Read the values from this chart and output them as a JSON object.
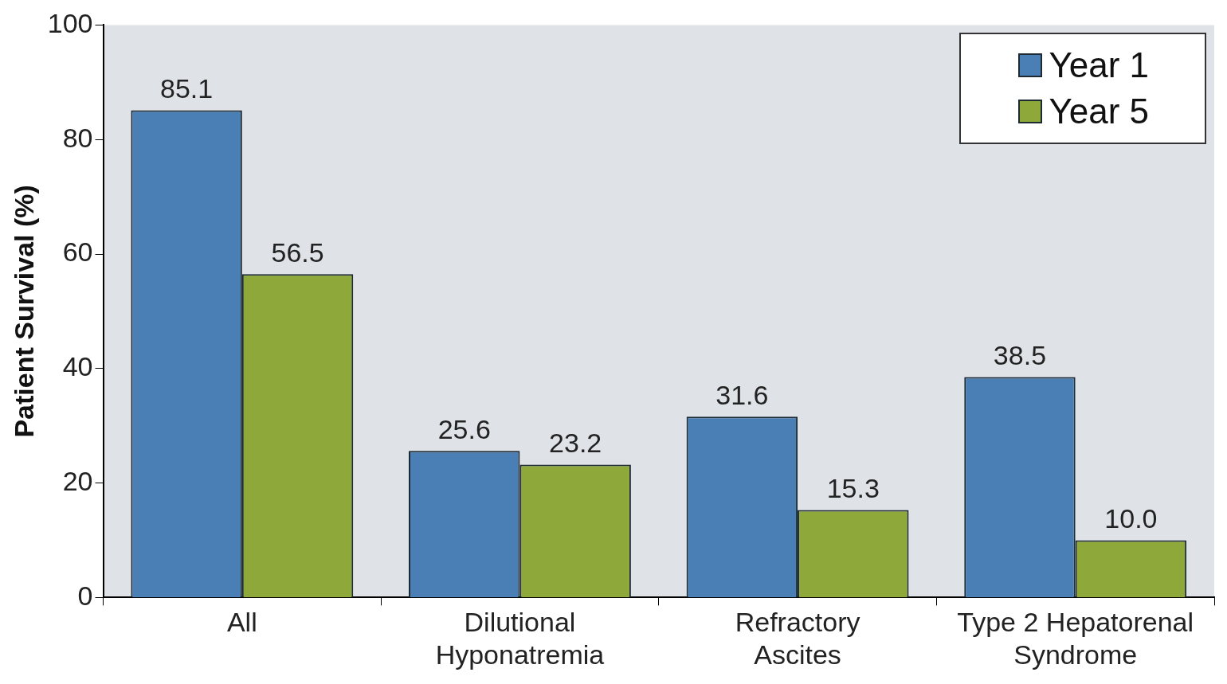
{
  "chart_data": {
    "type": "bar",
    "ylabel": "Patient Survival (%)",
    "categories": [
      "All",
      "Dilutional Hyponatremia",
      "Refractory Ascites",
      "Type 2 Hepatorenal Syndrome"
    ],
    "series": [
      {
        "name": "Year 1",
        "color": "#4a7fb5",
        "values": [
          85.1,
          25.6,
          31.6,
          38.5
        ],
        "value_labels": [
          "85.1",
          "25.6",
          "31.6",
          "38.5"
        ]
      },
      {
        "name": "Year 5",
        "color": "#8ea83a",
        "values": [
          56.5,
          23.2,
          15.3,
          10.0
        ],
        "value_labels": [
          "56.5",
          "23.2",
          "15.3",
          "10.0"
        ]
      }
    ],
    "ylim": [
      0,
      100
    ],
    "yticks": [
      0,
      20,
      40,
      60,
      80,
      100
    ],
    "grid": false,
    "legend": "top right"
  }
}
